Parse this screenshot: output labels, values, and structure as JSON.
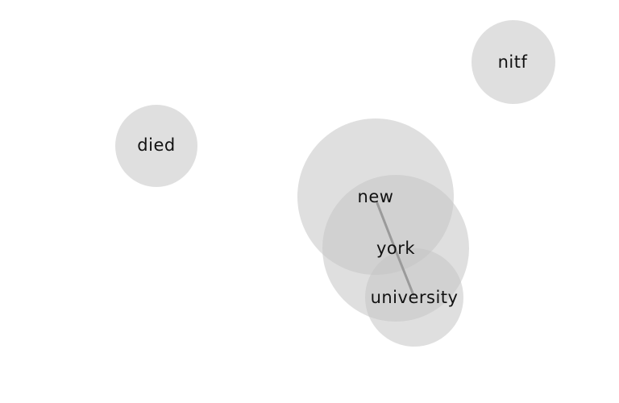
{
  "graph": {
    "colors": {
      "node_fill": "#c4c4c4",
      "edge_stroke": "#9a9a9a",
      "label": "#111111",
      "background": "#ffffff"
    },
    "nodes": [
      {
        "id": "nitf",
        "label": "nitf"
      },
      {
        "id": "died",
        "label": "died"
      },
      {
        "id": "new",
        "label": "new"
      },
      {
        "id": "york",
        "label": "york"
      },
      {
        "id": "university",
        "label": "university"
      }
    ],
    "edges": [
      {
        "source": "new",
        "target": "york"
      },
      {
        "source": "york",
        "target": "university"
      }
    ]
  }
}
